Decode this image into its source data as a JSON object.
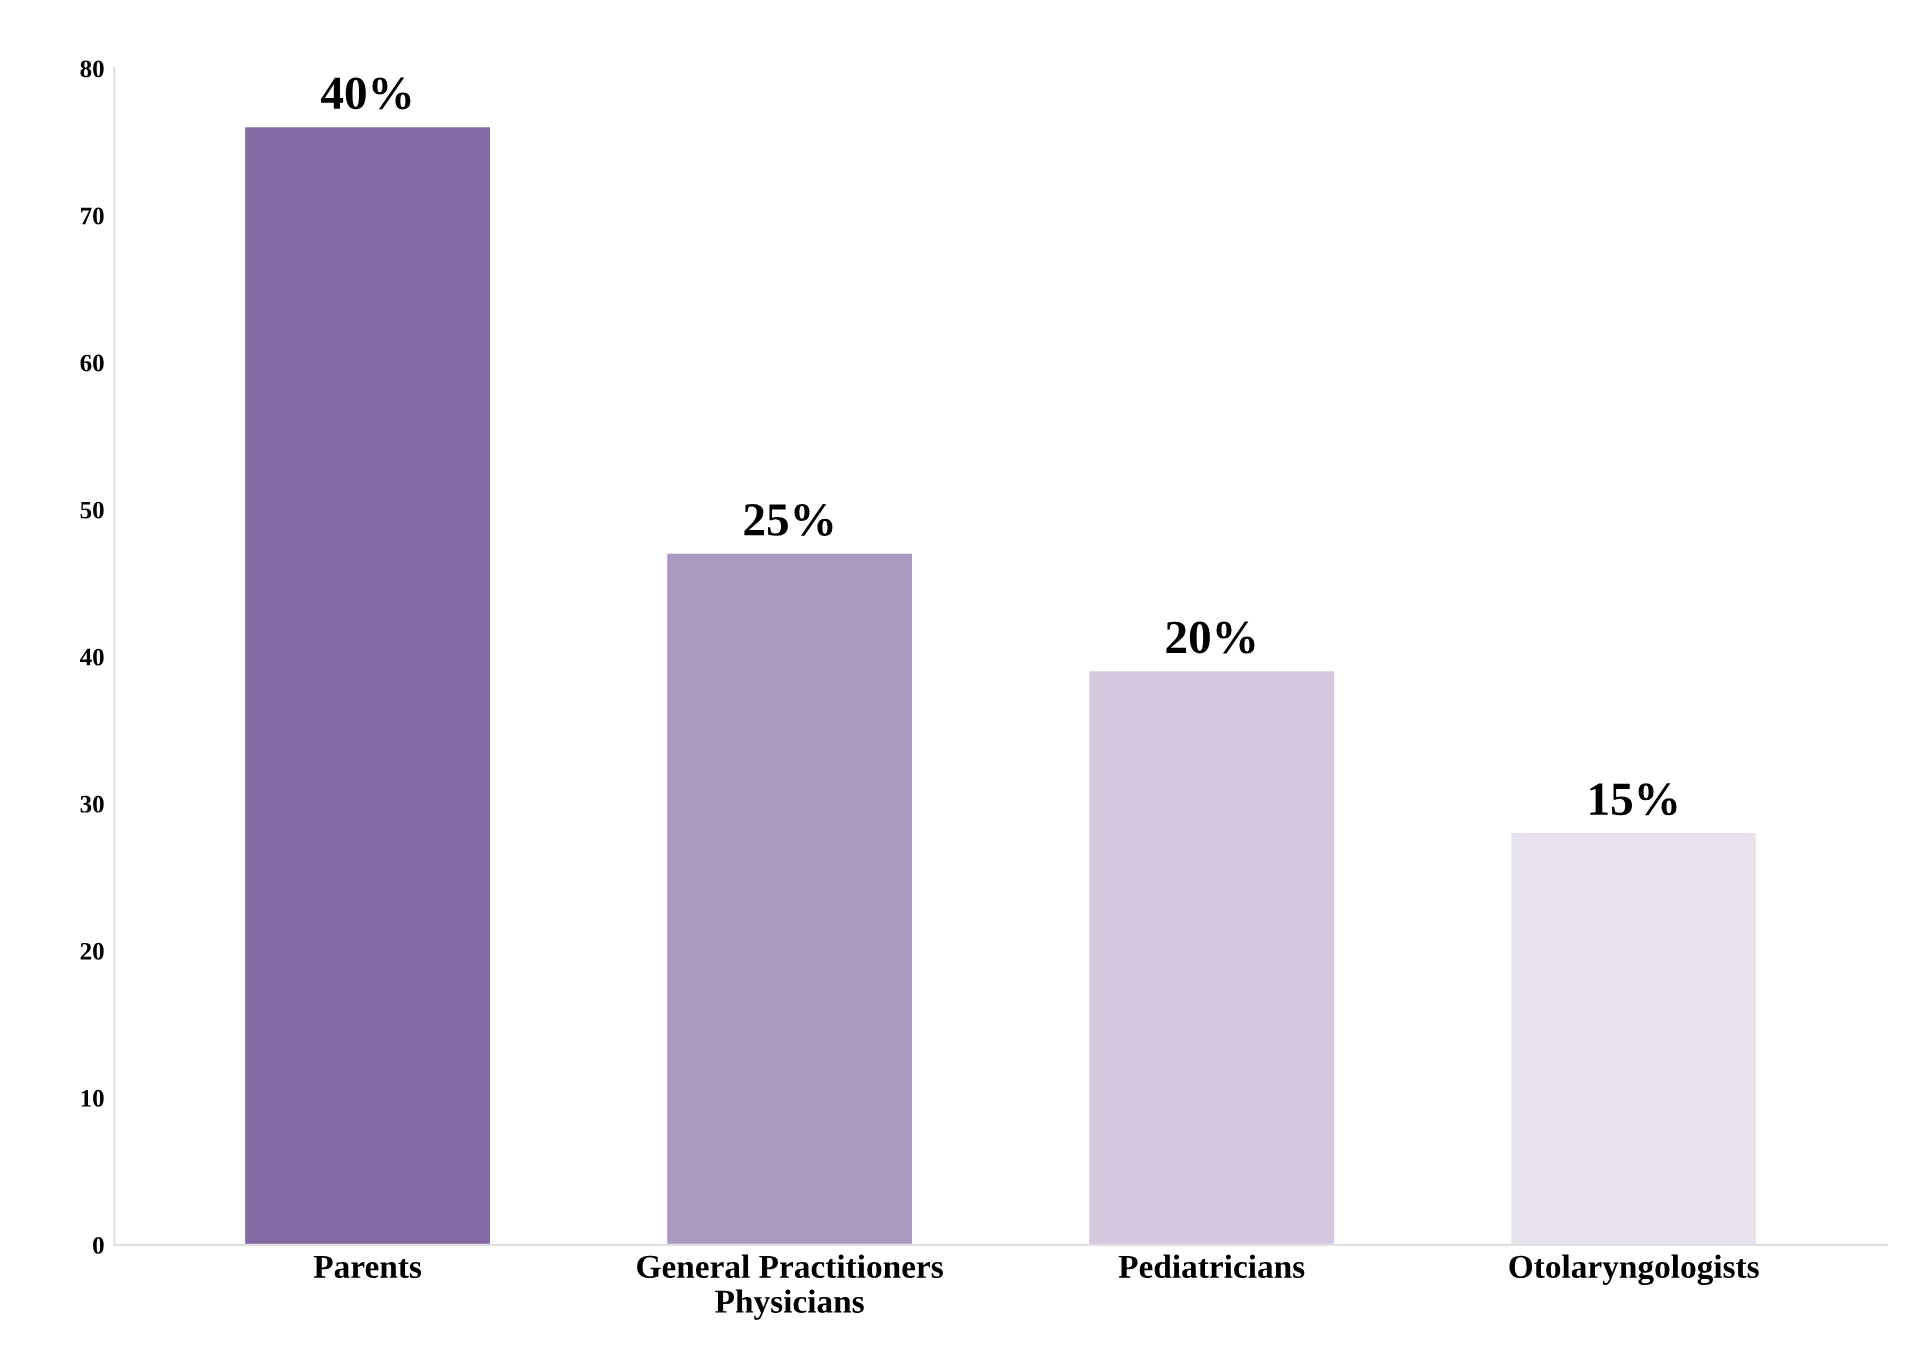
{
  "chart_data": {
    "type": "bar",
    "categories": [
      "Parents",
      "General Practitioners\nPhysicians",
      "Pediatricians",
      "Otolaryngologists"
    ],
    "values": [
      76,
      47,
      39,
      28
    ],
    "colors": [
      "#8469a5",
      "#aa9ac2",
      "#d5c8e0",
      "#e8e2ee"
    ],
    "annotations": [
      {
        "text": "40%",
        "x": "Parents",
        "y": 76
      },
      {
        "text": "25%",
        "x": "General Practitioners\nPhysicians",
        "y": 47
      },
      {
        "text": "20%",
        "x": "Pediatricians",
        "y": 39
      },
      {
        "text": "15%",
        "x": "Otolaryngologists",
        "y": 28
      }
    ],
    "ylim": [
      0,
      80
    ],
    "yticks": [
      0,
      10,
      20,
      30,
      40,
      50,
      60,
      70,
      80
    ],
    "grid": false,
    "legend": false
  }
}
